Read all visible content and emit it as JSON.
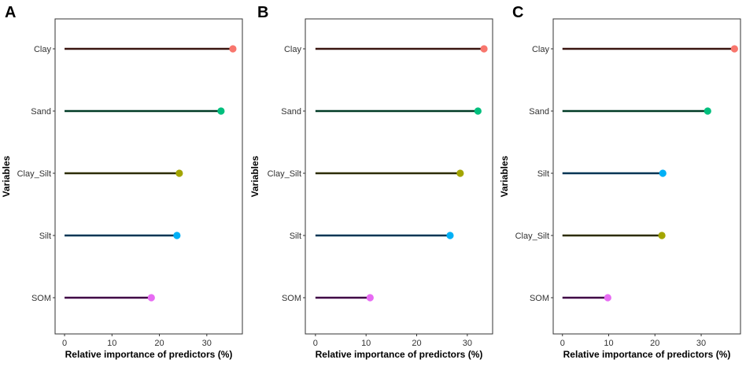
{
  "chart_data": [
    {
      "type": "lollipop",
      "panel": "A",
      "xlabel": "Relative importance of predictors (%)",
      "ylabel": "Variables",
      "xlim": [
        -2,
        37.5
      ],
      "xticks": [
        0,
        10,
        20,
        30
      ],
      "categories": [
        "Clay",
        "Sand",
        "Clay_Silt",
        "Silt",
        "SOM"
      ],
      "values": [
        35.5,
        33.0,
        24.2,
        23.7,
        18.3
      ],
      "colors": [
        "#F8766D",
        "#00BF7D",
        "#A3A500",
        "#00B0F6",
        "#E76BF3"
      ],
      "line_colors": [
        "#3a1510",
        "#003b25",
        "#2c2c00",
        "#003554",
        "#3f0045"
      ]
    },
    {
      "type": "lollipop",
      "panel": "B",
      "xlabel": "Relative importance of predictors (%)",
      "ylabel": "Variables",
      "xlim": [
        -2,
        35
      ],
      "xticks": [
        0,
        10,
        20,
        30
      ],
      "categories": [
        "Clay",
        "Sand",
        "Clay_Silt",
        "Silt",
        "SOM"
      ],
      "values": [
        33.3,
        32.1,
        28.6,
        26.6,
        10.8
      ],
      "colors": [
        "#F8766D",
        "#00BF7D",
        "#A3A500",
        "#00B0F6",
        "#E76BF3"
      ],
      "line_colors": [
        "#3a1510",
        "#003b25",
        "#2c2c00",
        "#003554",
        "#3f0045"
      ]
    },
    {
      "type": "lollipop",
      "panel": "C",
      "xlabel": "Relative importance of predictors (%)",
      "ylabel": "Variables",
      "xlim": [
        -2,
        38.5
      ],
      "xticks": [
        0,
        10,
        20,
        30
      ],
      "categories": [
        "Clay",
        "Sand",
        "Silt",
        "Clay_Silt",
        "SOM"
      ],
      "values": [
        37.2,
        31.4,
        21.7,
        21.5,
        9.8
      ],
      "colors": [
        "#F8766D",
        "#00BF7D",
        "#00B0F6",
        "#A3A500",
        "#E76BF3"
      ],
      "line_colors": [
        "#3a1510",
        "#003b25",
        "#003554",
        "#2c2c00",
        "#3f0045"
      ]
    }
  ]
}
